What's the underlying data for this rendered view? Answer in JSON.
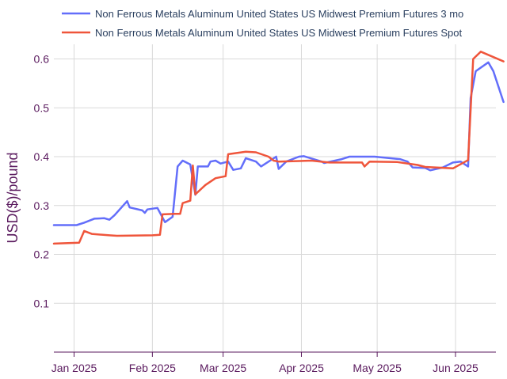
{
  "chart_data": {
    "type": "line",
    "title": "",
    "xlabel": "",
    "ylabel": "USD($)/pound",
    "ylim": [
      0.0,
      0.63
    ],
    "xlim": [
      "2024-12-24",
      "2025-06-17"
    ],
    "grid": true,
    "legend_position": "top",
    "y_ticks": [
      {
        "value": 0.1,
        "label": "0.1"
      },
      {
        "value": 0.2,
        "label": "0.2"
      },
      {
        "value": 0.3,
        "label": "0.3"
      },
      {
        "value": 0.4,
        "label": "0.4"
      },
      {
        "value": 0.5,
        "label": "0.5"
      },
      {
        "value": 0.6,
        "label": "0.6"
      }
    ],
    "x_ticks": [
      {
        "date": "2025-01-01",
        "label": "Jan 2025"
      },
      {
        "date": "2025-02-01",
        "label": "Feb 2025"
      },
      {
        "date": "2025-03-01",
        "label": "Mar 2025"
      },
      {
        "date": "2025-04-01",
        "label": "Apr 2025"
      },
      {
        "date": "2025-05-01",
        "label": "May 2025"
      },
      {
        "date": "2025-06-01",
        "label": "Jun 2025"
      }
    ],
    "series": [
      {
        "name": "Non Ferrous Metals Aluminum United States US Midwest Premium Futures 3 mo",
        "color": "#636efa",
        "points": [
          [
            "2024-12-24",
            0.26
          ],
          [
            "2025-01-02",
            0.26
          ],
          [
            "2025-01-05",
            0.265
          ],
          [
            "2025-01-09",
            0.273
          ],
          [
            "2025-01-13",
            0.274
          ],
          [
            "2025-01-15",
            0.271
          ],
          [
            "2025-01-17",
            0.28
          ],
          [
            "2025-01-22",
            0.309
          ],
          [
            "2025-01-23",
            0.296
          ],
          [
            "2025-01-28",
            0.29
          ],
          [
            "2025-01-29",
            0.285
          ],
          [
            "2025-01-30",
            0.292
          ],
          [
            "2025-02-03",
            0.295
          ],
          [
            "2025-02-06",
            0.266
          ],
          [
            "2025-02-09",
            0.277
          ],
          [
            "2025-02-11",
            0.38
          ],
          [
            "2025-02-13",
            0.392
          ],
          [
            "2025-02-16",
            0.384
          ],
          [
            "2025-02-18",
            0.322
          ],
          [
            "2025-02-19",
            0.38
          ],
          [
            "2025-02-23",
            0.38
          ],
          [
            "2025-02-24",
            0.39
          ],
          [
            "2025-02-26",
            0.392
          ],
          [
            "2025-02-28",
            0.386
          ],
          [
            "2025-03-03",
            0.39
          ],
          [
            "2025-03-05",
            0.373
          ],
          [
            "2025-03-08",
            0.376
          ],
          [
            "2025-03-10",
            0.397
          ],
          [
            "2025-03-14",
            0.39
          ],
          [
            "2025-03-16",
            0.38
          ],
          [
            "2025-03-22",
            0.4
          ],
          [
            "2025-03-23",
            0.375
          ],
          [
            "2025-03-26",
            0.39
          ],
          [
            "2025-03-31",
            0.4
          ],
          [
            "2025-04-02",
            0.401
          ],
          [
            "2025-04-09",
            0.39
          ],
          [
            "2025-04-10",
            0.387
          ],
          [
            "2025-04-17",
            0.395
          ],
          [
            "2025-04-20",
            0.4
          ],
          [
            "2025-04-30",
            0.4
          ],
          [
            "2025-05-04",
            0.398
          ],
          [
            "2025-05-10",
            0.395
          ],
          [
            "2025-05-13",
            0.39
          ],
          [
            "2025-05-15",
            0.378
          ],
          [
            "2025-05-20",
            0.377
          ],
          [
            "2025-05-22",
            0.372
          ],
          [
            "2025-05-27",
            0.378
          ],
          [
            "2025-05-31",
            0.388
          ],
          [
            "2025-06-03",
            0.39
          ],
          [
            "2025-06-06",
            0.38
          ],
          [
            "2025-06-07",
            0.52
          ],
          [
            "2025-06-09",
            0.575
          ],
          [
            "2025-06-14",
            0.593
          ],
          [
            "2025-06-16",
            0.575
          ],
          [
            "2025-06-20",
            0.512
          ]
        ]
      },
      {
        "name": "Non Ferrous Metals Aluminum United States US Midwest Premium Futures Spot",
        "color": "#ef553b",
        "points": [
          [
            "2024-12-24",
            0.222
          ],
          [
            "2025-01-03",
            0.224
          ],
          [
            "2025-01-05",
            0.248
          ],
          [
            "2025-01-08",
            0.242
          ],
          [
            "2025-01-15",
            0.239
          ],
          [
            "2025-01-18",
            0.238
          ],
          [
            "2025-02-01",
            0.239
          ],
          [
            "2025-02-04",
            0.24
          ],
          [
            "2025-02-05",
            0.282
          ],
          [
            "2025-02-10",
            0.283
          ],
          [
            "2025-02-12",
            0.283
          ],
          [
            "2025-02-13",
            0.305
          ],
          [
            "2025-02-16",
            0.31
          ],
          [
            "2025-02-17",
            0.382
          ],
          [
            "2025-02-18",
            0.323
          ],
          [
            "2025-02-22",
            0.342
          ],
          [
            "2025-02-26",
            0.356
          ],
          [
            "2025-03-02",
            0.36
          ],
          [
            "2025-03-03",
            0.405
          ],
          [
            "2025-03-10",
            0.41
          ],
          [
            "2025-03-14",
            0.409
          ],
          [
            "2025-03-19",
            0.4
          ],
          [
            "2025-03-21",
            0.392
          ],
          [
            "2025-03-23",
            0.39
          ],
          [
            "2025-04-05",
            0.392
          ],
          [
            "2025-04-12",
            0.388
          ],
          [
            "2025-04-25",
            0.388
          ],
          [
            "2025-04-26",
            0.38
          ],
          [
            "2025-04-28",
            0.39
          ],
          [
            "2025-05-09",
            0.389
          ],
          [
            "2025-05-17",
            0.383
          ],
          [
            "2025-05-20",
            0.379
          ],
          [
            "2025-05-31",
            0.376
          ],
          [
            "2025-06-06",
            0.393
          ],
          [
            "2025-06-08",
            0.6
          ],
          [
            "2025-06-11",
            0.615
          ],
          [
            "2025-06-20",
            0.595
          ]
        ]
      }
    ]
  }
}
